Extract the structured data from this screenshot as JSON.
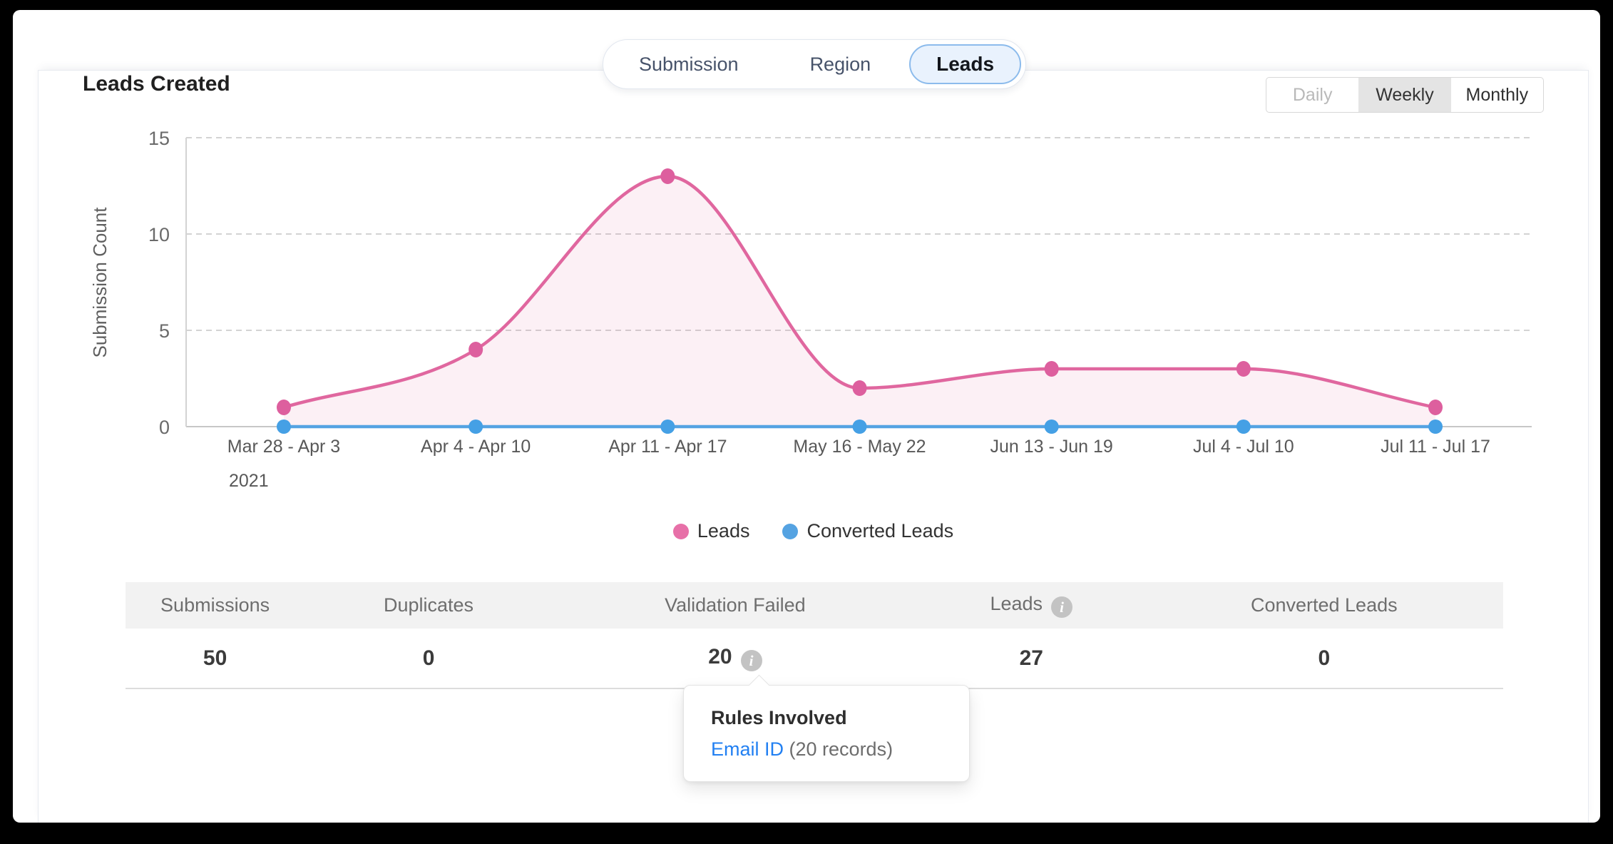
{
  "header": {
    "title": "Leads Created"
  },
  "tabs": {
    "items": [
      "Submission",
      "Region",
      "Leads"
    ],
    "selected": "Leads"
  },
  "range_toggle": {
    "options": [
      "Daily",
      "Weekly",
      "Monthly"
    ],
    "selected": "Weekly"
  },
  "chart_data": {
    "type": "line",
    "title": "Leads Created",
    "ylabel": "Submission Count",
    "year_label": "2021",
    "categories": [
      "Mar 28 - Apr 3",
      "Apr 4 - Apr 10",
      "Apr 11 - Apr 17",
      "May 16 - May 22",
      "Jun 13 - Jun 19",
      "Jul 4 - Jul 10",
      "Jul 11 - Jul 17"
    ],
    "series": [
      {
        "name": "Leads",
        "color": "#e0679f",
        "dot_color": "#dd5f9e",
        "area_fill": "rgba(224,103,160,0.10)",
        "values": [
          1,
          4,
          13,
          2,
          3,
          3,
          1
        ],
        "smooth": true
      },
      {
        "name": "Converted Leads",
        "color": "#55a3e2",
        "dot_color": "#45a0e5",
        "values": [
          0,
          0,
          0,
          0,
          0,
          0,
          0
        ],
        "smooth": false
      }
    ],
    "ylim": [
      0,
      15
    ],
    "yticks": [
      0,
      5,
      10,
      15
    ],
    "grid": "dashed-horizontal",
    "legend_position": "bottom"
  },
  "legend": [
    {
      "label": "Leads",
      "color": "#e770a8"
    },
    {
      "label": "Converted Leads",
      "color": "#55a3e2"
    }
  ],
  "summary_table": {
    "columns": [
      {
        "label": "Submissions",
        "value": "50"
      },
      {
        "label": "Duplicates",
        "value": "0"
      },
      {
        "label": "Validation Failed",
        "value": "20",
        "value_info_icon": true
      },
      {
        "label": "Leads",
        "header_info_icon": true,
        "value": "27"
      },
      {
        "label": "Converted Leads",
        "value": "0"
      }
    ]
  },
  "tooltip": {
    "title": "Rules Involved",
    "link_label": "Email ID",
    "suffix": " (20 records)"
  },
  "icons": {
    "info_glyph": "i"
  }
}
